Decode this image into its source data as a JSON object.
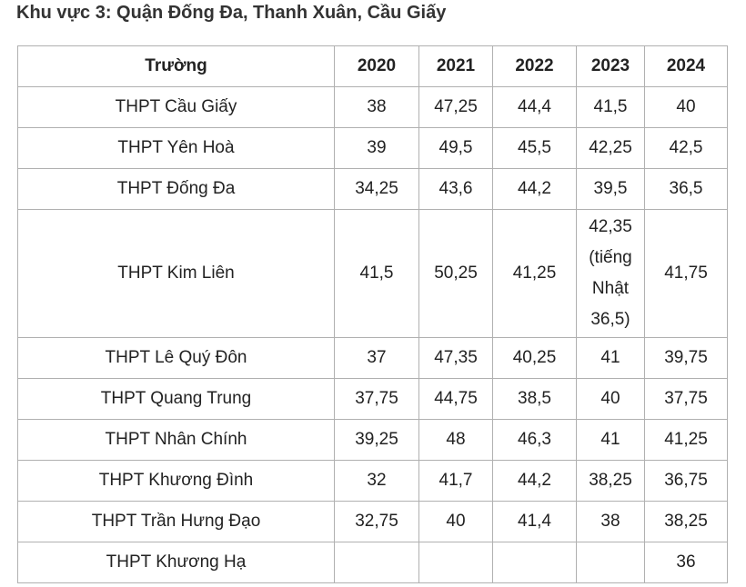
{
  "title": "Khu vực 3: Quận Đống Đa, Thanh Xuân, Cầu Giấy",
  "table": {
    "headers": [
      "Trường",
      "2020",
      "2021",
      "2022",
      "2023",
      "2024"
    ],
    "rows": [
      {
        "school": "THPT Cầu Giấy",
        "cells": [
          "38",
          "47,25",
          "44,4",
          "41,5",
          "40"
        ]
      },
      {
        "school": "THPT Yên Hoà",
        "cells": [
          "39",
          "49,5",
          "45,5",
          "42,25",
          "42,5"
        ]
      },
      {
        "school": "THPT Đống Đa",
        "cells": [
          "34,25",
          "43,6",
          "44,2",
          "39,5",
          "36,5"
        ]
      },
      {
        "school": "THPT Kim Liên",
        "cells": [
          "41,5",
          "50,25",
          "41,25",
          "42,35\n(tiếng\nNhật\n36,5)",
          "41,75"
        ]
      },
      {
        "school": "THPT Lê Quý Đôn",
        "cells": [
          "37",
          "47,35",
          "40,25",
          "41",
          "39,75"
        ]
      },
      {
        "school": "THPT Quang Trung",
        "cells": [
          "37,75",
          "44,75",
          "38,5",
          "40",
          "37,75"
        ]
      },
      {
        "school": "THPT Nhân Chính",
        "cells": [
          "39,25",
          "48",
          "46,3",
          "41",
          "41,25"
        ]
      },
      {
        "school": "THPT Khương Đình",
        "cells": [
          "32",
          "41,7",
          "44,2",
          "38,25",
          "36,75"
        ]
      },
      {
        "school": "THPT Trần Hưng Đạo",
        "cells": [
          "32,75",
          "40",
          "41,4",
          "38",
          "38,25"
        ]
      },
      {
        "school": "THPT Khương Hạ",
        "cells": [
          "",
          "",
          "",
          "",
          "36"
        ]
      }
    ]
  }
}
